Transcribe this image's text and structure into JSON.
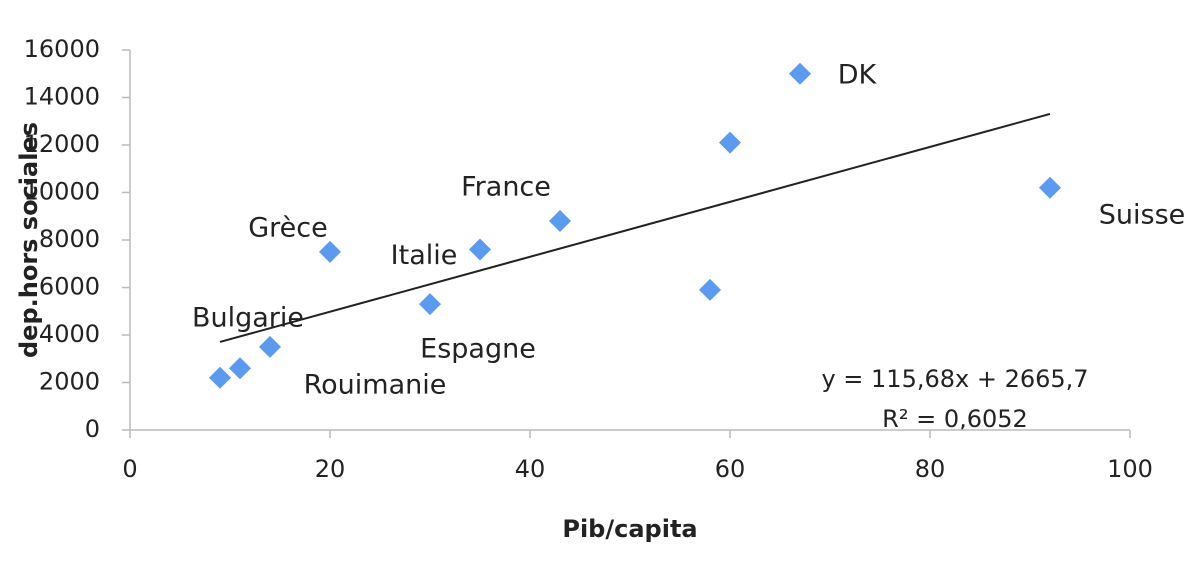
{
  "chart_data": {
    "type": "scatter",
    "x_label": "Pib/capita",
    "y_label": "dep.hors sociales",
    "x": [
      9,
      11,
      14,
      20,
      30,
      35,
      43,
      58,
      60,
      67,
      92
    ],
    "values": [
      2200,
      2600,
      3500,
      7500,
      5300,
      7600,
      8800,
      5900,
      12100,
      15000,
      10200
    ],
    "point_labels": [
      "Bulgarie",
      null,
      "Rouimanie",
      "Grèce",
      "Espagne",
      "Italie",
      "France",
      null,
      null,
      "DK",
      "Suisse"
    ],
    "color": "#5b9bef",
    "xlim": [
      0,
      100
    ],
    "xticks": [
      0,
      20,
      40,
      60,
      80,
      100
    ],
    "ylim": [
      0,
      16000
    ],
    "yticks": [
      0,
      2000,
      4000,
      6000,
      8000,
      10000,
      12000,
      14000,
      16000
    ],
    "grid": false,
    "trendline": {
      "slope": 115.68,
      "intercept": 2665.7,
      "equation": "y = 115,68x + 2665,7",
      "r_squared": "R² = 0,6052"
    }
  }
}
